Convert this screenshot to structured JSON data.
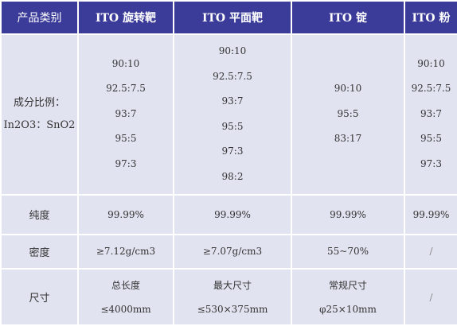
{
  "header": {
    "category": "产品类别",
    "rotary_target": "ITO 旋转靶",
    "planar_target": "ITO 平面靶",
    "ingot": "ITO 锭",
    "powder": "ITO 粉"
  },
  "composition": {
    "label_line1": "成分比例：",
    "label_line2": "In2O3：SnO2",
    "rotary_target": [
      "90:10",
      "92.5:7.5",
      "93:7",
      "95:5",
      "97:3"
    ],
    "planar_target": [
      "90:10",
      "92.5:7.5",
      "93:7",
      "95:5",
      "97:3",
      "98:2"
    ],
    "ingot": [
      "90:10",
      "95:5",
      "83:17"
    ],
    "powder": [
      "90:10",
      "92.5:7.5",
      "93:7",
      "95:5",
      "97:3"
    ]
  },
  "purity": {
    "label": "纯度",
    "rotary_target": "99.99%",
    "planar_target": "99.99%",
    "ingot": "99.99%",
    "powder": "99.99%"
  },
  "density": {
    "label": "密度",
    "rotary_target": "≥7.12g/cm3",
    "planar_target": "≥7.07g/cm3",
    "ingot": "55~70%",
    "powder": "/"
  },
  "size": {
    "label": "尺寸",
    "rotary_target": [
      "总长度",
      "≤4000mm"
    ],
    "planar_target": [
      "最大尺寸",
      "≤530×375mm"
    ],
    "ingot": [
      "常规尺寸",
      "φ25×10mm"
    ],
    "powder": "/"
  },
  "colors": {
    "header_bg": "#3b3b9a",
    "cell_bg": "#e1e4f0"
  }
}
